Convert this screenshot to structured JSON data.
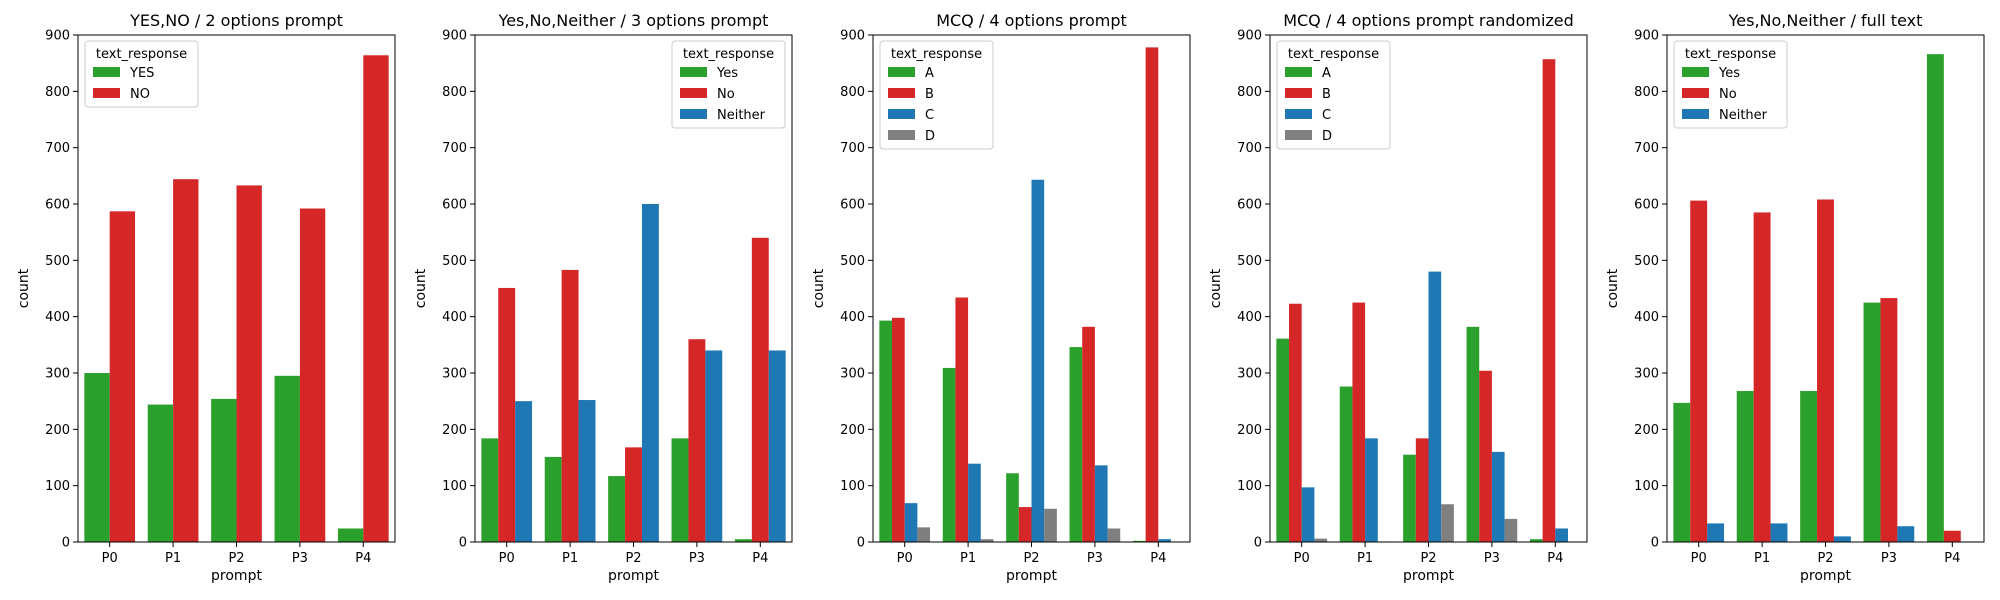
{
  "chart_data": [
    {
      "type": "bar",
      "title": "YES,NO / 2 options prompt",
      "xlabel": "prompt",
      "ylabel": "count",
      "ylim": [
        0,
        900
      ],
      "yticks": [
        0,
        100,
        200,
        300,
        400,
        500,
        600,
        700,
        800,
        900
      ],
      "categories": [
        "P0",
        "P1",
        "P2",
        "P3",
        "P4"
      ],
      "legend_title": "text_response",
      "legend_position": "top-left",
      "series": [
        {
          "name": "YES",
          "color": "#2ca02c",
          "values": [
            300,
            244,
            254,
            295,
            24
          ]
        },
        {
          "name": "NO",
          "color": "#d62728",
          "values": [
            587,
            644,
            633,
            592,
            864
          ]
        }
      ]
    },
    {
      "type": "bar",
      "title": "Yes,No,Neither / 3 options prompt",
      "xlabel": "prompt",
      "ylabel": "count",
      "ylim": [
        0,
        900
      ],
      "yticks": [
        0,
        100,
        200,
        300,
        400,
        500,
        600,
        700,
        800,
        900
      ],
      "categories": [
        "P0",
        "P1",
        "P2",
        "P3",
        "P4"
      ],
      "legend_title": "text_response",
      "legend_position": "top-right",
      "series": [
        {
          "name": "Yes",
          "color": "#2ca02c",
          "values": [
            184,
            151,
            117,
            184,
            5
          ]
        },
        {
          "name": "No",
          "color": "#d62728",
          "values": [
            451,
            483,
            168,
            360,
            540
          ]
        },
        {
          "name": "Neither",
          "color": "#1f77b4",
          "values": [
            250,
            252,
            600,
            340,
            340
          ]
        }
      ]
    },
    {
      "type": "bar",
      "title": "MCQ / 4 options prompt",
      "xlabel": "prompt",
      "ylabel": "count",
      "ylim": [
        0,
        900
      ],
      "yticks": [
        0,
        100,
        200,
        300,
        400,
        500,
        600,
        700,
        800,
        900
      ],
      "categories": [
        "P0",
        "P1",
        "P2",
        "P3",
        "P4"
      ],
      "legend_title": "text_response",
      "legend_position": "top-left",
      "series": [
        {
          "name": "A",
          "color": "#2ca02c",
          "values": [
            393,
            309,
            122,
            346,
            2
          ]
        },
        {
          "name": "B",
          "color": "#d62728",
          "values": [
            398,
            434,
            62,
            382,
            878
          ]
        },
        {
          "name": "C",
          "color": "#1f77b4",
          "values": [
            69,
            139,
            643,
            136,
            5
          ]
        },
        {
          "name": "D",
          "color": "#7f7f7f",
          "values": [
            26,
            5,
            59,
            24,
            0
          ]
        }
      ]
    },
    {
      "type": "bar",
      "title": "MCQ / 4 options prompt randomized",
      "xlabel": "prompt",
      "ylabel": "count",
      "ylim": [
        0,
        900
      ],
      "yticks": [
        0,
        100,
        200,
        300,
        400,
        500,
        600,
        700,
        800,
        900
      ],
      "categories": [
        "P0",
        "P1",
        "P2",
        "P3",
        "P4"
      ],
      "legend_title": "text_response",
      "legend_position": "top-left",
      "series": [
        {
          "name": "A",
          "color": "#2ca02c",
          "values": [
            361,
            276,
            155,
            382,
            5
          ]
        },
        {
          "name": "B",
          "color": "#d62728",
          "values": [
            423,
            425,
            184,
            304,
            857
          ]
        },
        {
          "name": "C",
          "color": "#1f77b4",
          "values": [
            97,
            184,
            480,
            160,
            24
          ]
        },
        {
          "name": "D",
          "color": "#7f7f7f",
          "values": [
            6,
            1,
            67,
            41,
            0
          ]
        }
      ]
    },
    {
      "type": "bar",
      "title": "Yes,No,Neither / full text",
      "xlabel": "prompt",
      "ylabel": "count",
      "ylim": [
        0,
        900
      ],
      "yticks": [
        0,
        100,
        200,
        300,
        400,
        500,
        600,
        700,
        800,
        900
      ],
      "categories": [
        "P0",
        "P1",
        "P2",
        "P3",
        "P4"
      ],
      "legend_title": "text_response",
      "legend_position": "top-left",
      "series": [
        {
          "name": "Yes",
          "color": "#2ca02c",
          "values": [
            247,
            268,
            268,
            425,
            866
          ]
        },
        {
          "name": "No",
          "color": "#d62728",
          "values": [
            606,
            585,
            608,
            433,
            20
          ]
        },
        {
          "name": "Neither",
          "color": "#1f77b4",
          "values": [
            33,
            33,
            10,
            28,
            1
          ]
        }
      ]
    }
  ]
}
